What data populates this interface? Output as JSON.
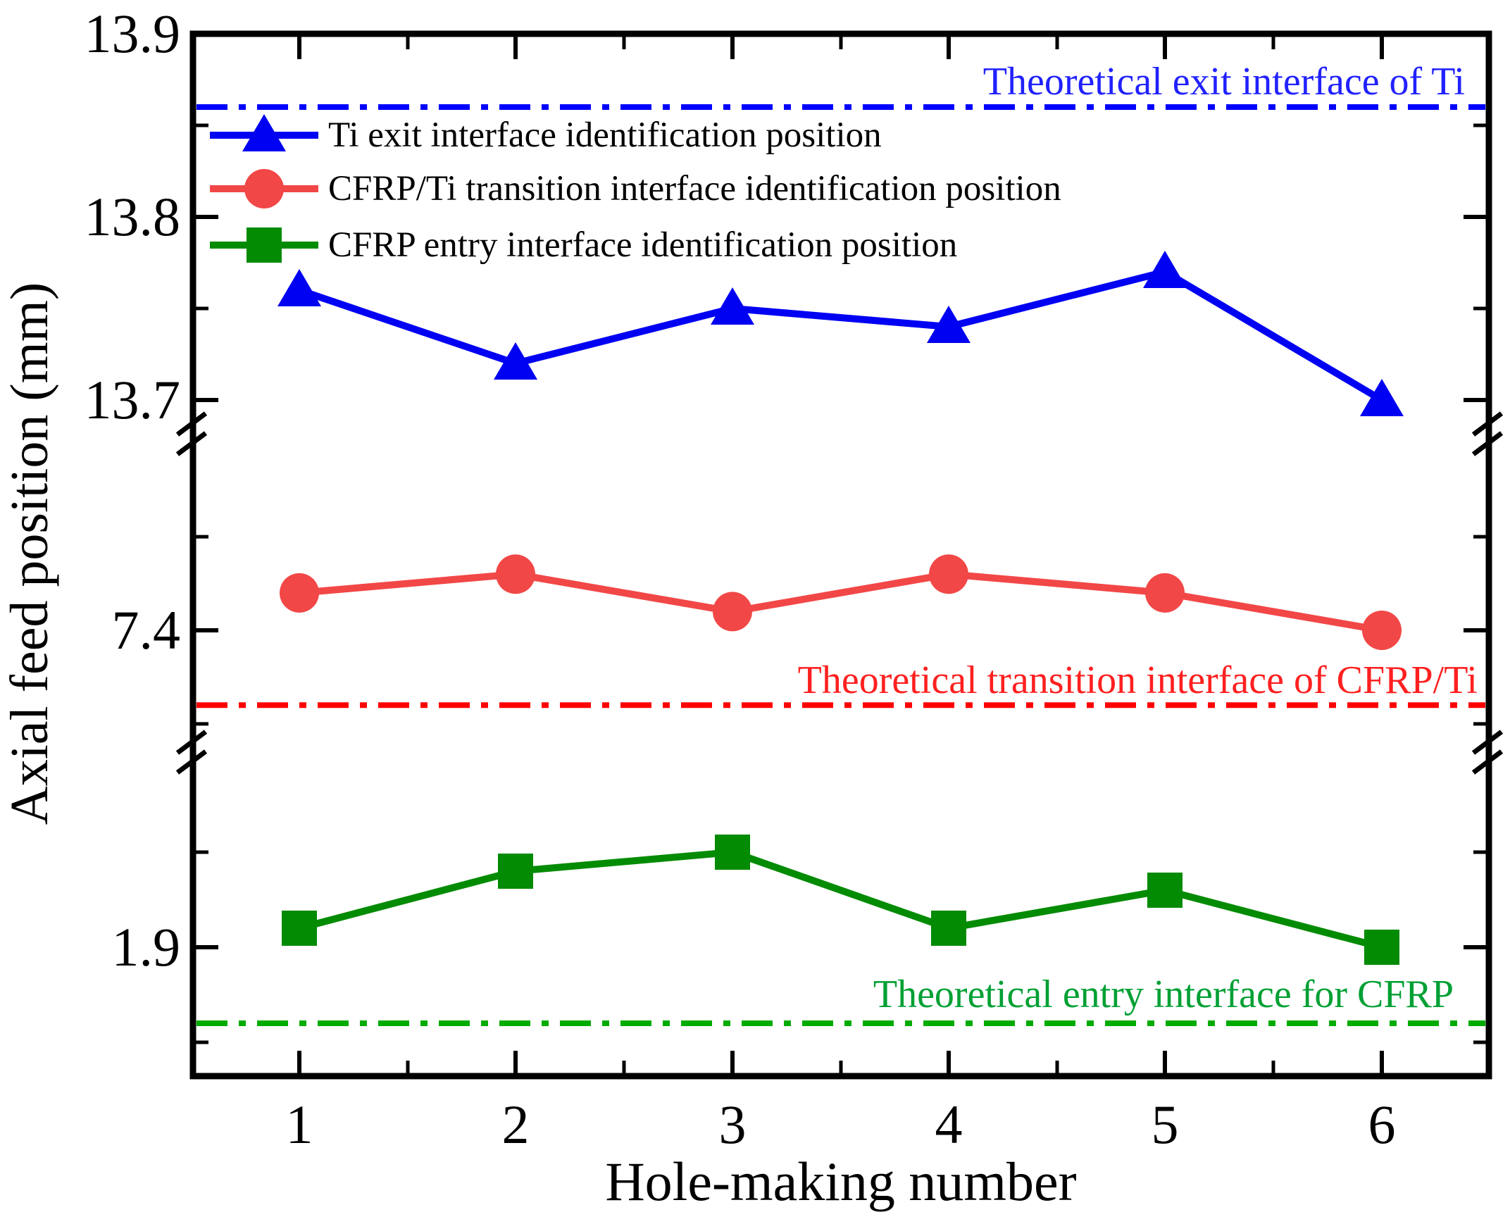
{
  "y_axis": {
    "title": "Axial feed position (mm)",
    "tick_labels": [
      {
        "label": "13.9",
        "value": 13.9
      },
      {
        "label": "13.8",
        "value": 13.8
      },
      {
        "label": "13.7",
        "value": 13.7
      },
      {
        "label": "7.4",
        "value": 7.4
      },
      {
        "label": "1.9",
        "value": 1.9
      }
    ]
  },
  "x_axis": {
    "title": "Hole-making number",
    "tick_labels": [
      "1",
      "2",
      "3",
      "4",
      "5",
      "6"
    ]
  },
  "chart_data": {
    "type": "line",
    "x": [
      1,
      2,
      3,
      4,
      5,
      6
    ],
    "xlim": [
      0.5,
      6.5
    ],
    "grid": false,
    "legend_position": "top-left-inside",
    "y_axis_broken": true,
    "y_segments": [
      [
        13.68,
        13.9
      ],
      [
        7.33,
        7.47
      ],
      [
        1.83,
        1.97
      ]
    ],
    "y_minor_tick_values": [
      13.85,
      13.75,
      7.45,
      7.35,
      1.95,
      1.85
    ],
    "series": [
      {
        "name": "Ti exit interface identification position",
        "marker": "triangle",
        "color": "#0000f2",
        "values": [
          13.76,
          13.72,
          13.75,
          13.74,
          13.77,
          13.7
        ]
      },
      {
        "name": "CFRP/Ti transition interface identification position",
        "marker": "circle",
        "color": "#f24747",
        "values": [
          7.42,
          7.43,
          7.41,
          7.43,
          7.42,
          7.4
        ]
      },
      {
        "name": "CFRP entry interface identification position",
        "marker": "square",
        "color": "#038b03",
        "values": [
          1.91,
          1.94,
          1.95,
          1.91,
          1.93,
          1.9
        ]
      }
    ],
    "reference_lines": [
      {
        "label": "Theoretical exit interface of Ti",
        "value": 13.86,
        "line_color": "#0000ff",
        "text_color": "#2121ff"
      },
      {
        "label": "Theoretical transition interface of CFRP/Ti",
        "value": 7.36,
        "line_color": "#fe0000",
        "text_color": "#ff2020"
      },
      {
        "label": "Theoretical entry interface for CFRP",
        "value": 1.86,
        "line_color": "#00ab00",
        "text_color": "#00a034"
      }
    ],
    "axis_color": "#000000",
    "background_color": "#ffffff"
  }
}
